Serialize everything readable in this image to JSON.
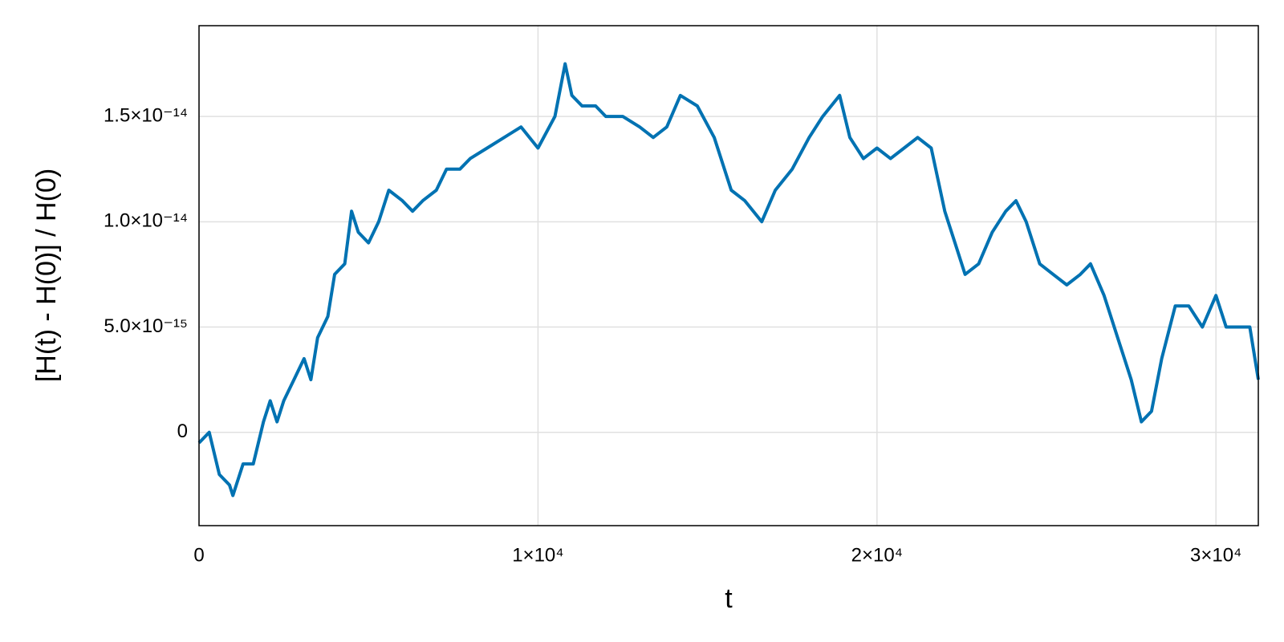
{
  "chart_data": {
    "type": "line",
    "x_label": "t",
    "y_label": "[H(t) - H(0)] / H(0)",
    "xlim": [
      0,
      31250
    ],
    "ylim": [
      -4.43e-15,
      1.931e-14
    ],
    "xticks": [
      0,
      {
        "value": 10000,
        "label": "1×10⁴"
      },
      {
        "value": 20000,
        "label": "2×10⁴"
      },
      {
        "value": 30000,
        "label": "3×10⁴"
      }
    ],
    "yticks": [
      0,
      {
        "value": 5e-15,
        "label": "5.0×10⁻¹⁵"
      },
      {
        "value": 1e-14,
        "label": "1.0×10⁻¹⁴"
      },
      {
        "value": 1.5e-14,
        "label": "1.5×10⁻¹⁴"
      }
    ],
    "grid": true,
    "x": [
      0,
      300,
      600,
      900,
      1000,
      1300,
      1600,
      1900,
      2100,
      2300,
      2500,
      2800,
      3100,
      3300,
      3500,
      3800,
      4000,
      4300,
      4500,
      4700,
      5000,
      5300,
      5600,
      6000,
      6300,
      6600,
      7000,
      7300,
      7700,
      8000,
      8500,
      9000,
      9500,
      10000,
      10500,
      10800,
      11000,
      11300,
      11700,
      12000,
      12500,
      13000,
      13400,
      13800,
      14200,
      14700,
      15200,
      15700,
      16100,
      16600,
      17000,
      17500,
      18000,
      18400,
      18900,
      19200,
      19600,
      20000,
      20400,
      20800,
      21200,
      21600,
      22000,
      22300,
      22600,
      23000,
      23400,
      23800,
      24100,
      24400,
      24800,
      25200,
      25600,
      26000,
      26300,
      26700,
      27100,
      27500,
      27800,
      28100,
      28400,
      28800,
      29200,
      29600,
      30000,
      30300,
      30700,
      31000,
      31250
    ],
    "series": [
      {
        "color": "#0072b2",
        "values": [
          -5e-16,
          0,
          -2e-15,
          -2.5e-15,
          -3e-15,
          -1.5e-15,
          -1.5e-15,
          5e-16,
          1.5e-15,
          5e-16,
          1.5e-15,
          2.5e-15,
          3.5e-15,
          2.5e-15,
          4.5e-15,
          5.5e-15,
          7.5e-15,
          8e-15,
          1.05e-14,
          9.5e-15,
          9e-15,
          1e-14,
          1.15e-14,
          1.1e-14,
          1.05e-14,
          1.1e-14,
          1.15e-14,
          1.25e-14,
          1.25e-14,
          1.3e-14,
          1.35e-14,
          1.4e-14,
          1.45e-14,
          1.35e-14,
          1.5e-14,
          1.75e-14,
          1.6e-14,
          1.55e-14,
          1.55e-14,
          1.5e-14,
          1.5e-14,
          1.45e-14,
          1.4e-14,
          1.45e-14,
          1.6e-14,
          1.55e-14,
          1.4e-14,
          1.15e-14,
          1.1e-14,
          1e-14,
          1.15e-14,
          1.25e-14,
          1.4e-14,
          1.5e-14,
          1.6e-14,
          1.4e-14,
          1.3e-14,
          1.35e-14,
          1.3e-14,
          1.35e-14,
          1.4e-14,
          1.35e-14,
          1.05e-14,
          9e-15,
          7.5e-15,
          8e-15,
          9.5e-15,
          1.05e-14,
          1.1e-14,
          1e-14,
          8e-15,
          7.5e-15,
          7e-15,
          7.5e-15,
          8e-15,
          6.5e-15,
          4.5e-15,
          2.5e-15,
          5e-16,
          1e-15,
          3.5e-15,
          6e-15,
          6e-15,
          5e-15,
          6.5e-15,
          5e-15,
          5e-15,
          5e-15,
          2.5e-15
        ]
      }
    ]
  }
}
